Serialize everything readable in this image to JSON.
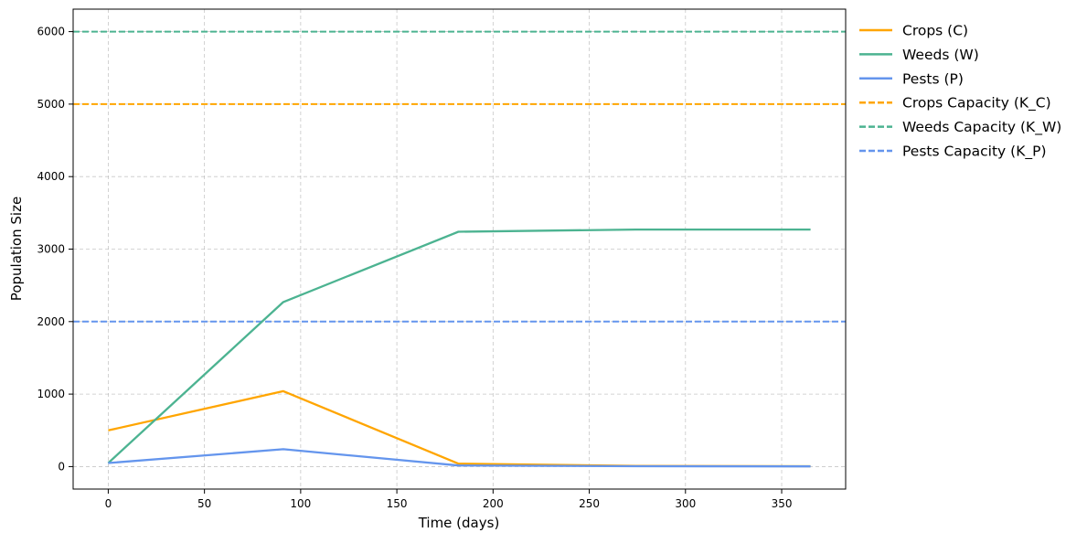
{
  "chart_data": {
    "type": "line",
    "title": "",
    "xlabel": "Time (days)",
    "ylabel": "Population Size",
    "xlim": [
      -18.25,
      383.25
    ],
    "ylim": [
      -310,
      6310
    ],
    "xticks": [
      0,
      50,
      100,
      150,
      200,
      250,
      300,
      350
    ],
    "yticks": [
      0,
      1000,
      2000,
      3000,
      4000,
      5000,
      6000
    ],
    "grid": true,
    "legend_position": "outside-right-top",
    "series": [
      {
        "name": "Crops (C)",
        "color": "#FFA500",
        "style": "solid",
        "x": [
          0,
          91,
          182,
          274,
          365
        ],
        "y": [
          500,
          1040,
          40,
          10,
          5
        ]
      },
      {
        "name": "Weeds (W)",
        "color": "#4CB391",
        "style": "solid",
        "x": [
          0,
          91,
          182,
          274,
          365
        ],
        "y": [
          50,
          2270,
          3240,
          3270,
          3270
        ]
      },
      {
        "name": "Pests (P)",
        "color": "#6495ED",
        "style": "solid",
        "x": [
          0,
          91,
          182,
          274,
          365
        ],
        "y": [
          50,
          240,
          15,
          5,
          3
        ]
      }
    ],
    "reference_lines": [
      {
        "name": "Crops Capacity (K_C)",
        "color": "#FFA500",
        "style": "dashed",
        "y": 5000
      },
      {
        "name": "Weeds Capacity (K_W)",
        "color": "#4CB391",
        "style": "dashed",
        "y": 6000
      },
      {
        "name": "Pests Capacity (K_P)",
        "color": "#6495ED",
        "style": "dashed",
        "y": 2000
      }
    ]
  }
}
